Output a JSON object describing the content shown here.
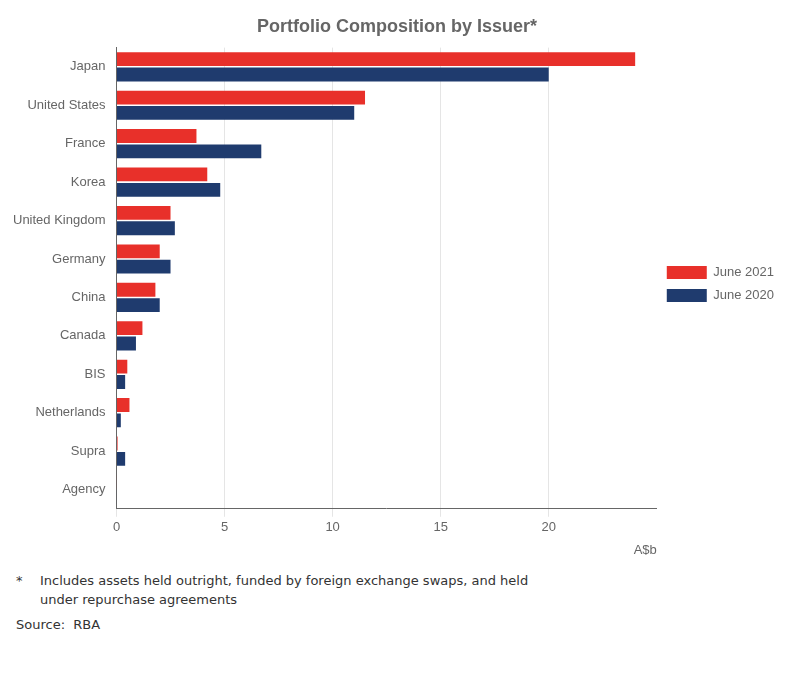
{
  "chart_data": {
    "type": "bar",
    "orientation": "horizontal",
    "title": "Portfolio Composition by Issuer*",
    "categories": [
      "Japan",
      "United States",
      "France",
      "Korea",
      "United Kingdom",
      "Germany",
      "China",
      "Canada",
      "BIS",
      "Netherlands",
      "Supra",
      "Agency"
    ],
    "series": [
      {
        "name": "June 2021",
        "color": "#e8302a",
        "values": [
          24.0,
          11.5,
          3.7,
          4.2,
          2.5,
          2.0,
          1.8,
          1.2,
          0.5,
          0.6,
          0.05,
          0.02
        ]
      },
      {
        "name": "June 2020",
        "color": "#1f3b6e",
        "values": [
          20.0,
          11.0,
          6.7,
          4.8,
          2.7,
          2.5,
          2.0,
          0.9,
          0.4,
          0.2,
          0.4,
          0.02
        ]
      }
    ],
    "xlabel": "A$b",
    "xlim": [
      0,
      25
    ],
    "xticks": [
      0,
      5,
      10,
      15,
      20
    ],
    "grid": true,
    "legend": "right",
    "annotations": [
      "*",
      "Includes assets held outright, funded by foreign exchange swaps, and held",
      "under repurchase agreements",
      "Source:  RBA"
    ]
  }
}
